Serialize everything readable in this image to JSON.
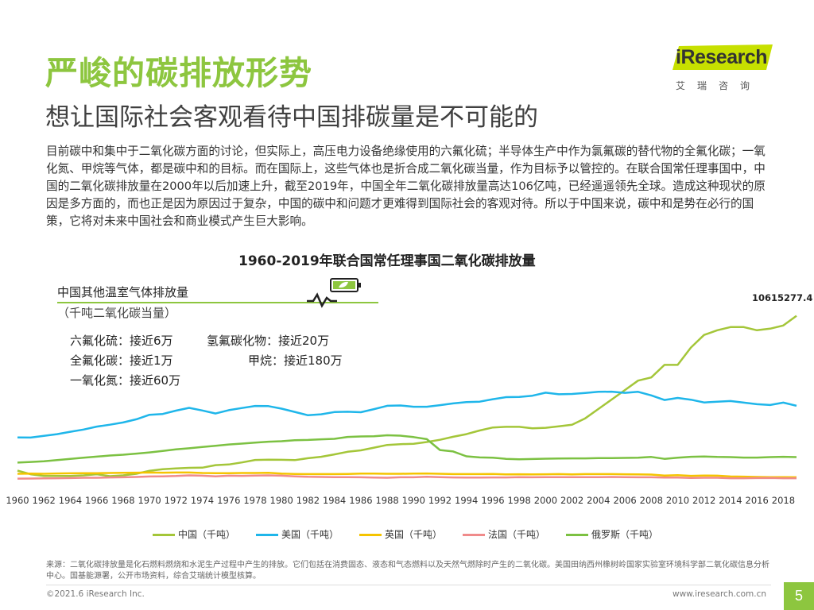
{
  "page": {
    "title": "严峻的碳排放形势",
    "subtitle": "想让国际社会客观看待中国排碳量是不可能的",
    "paragraph": "目前碳中和集中于二氧化碳方面的讨论，但实际上，高压电力设备绝缘使用的六氟化硫；半导体生产中作为氯氟碳的替代物的全氟化碳；一氧化氮、甲烷等气体，都是碳中和的目标。而在国际上，这些气体也是折合成二氧化碳当量，作为目标予以管控的。在联合国常任理事国中，中国的二氧化碳排放量在2000年以后加速上升，截至2019年，中国全年二氧化碳排放量高达106亿吨，已经遥遥领先全球。造成这种现状的原因是多方面的，而也正是因为原因过于复杂，中国的碳中和问题才更难得到国际社会的客观对待。所以于中国来说，碳中和是势在必行的国策，它将对未来中国社会和商业模式产生巨大影响。",
    "source": "来源：二氧化碳排放量是化石燃料燃烧和水泥生产过程中产生的排放。它们包括在消费固态、液态和气态燃料以及天然气燃除时产生的二氧化碳。美国田纳西州橡树岭国家实验室环境科学部二氧化碳信息分析中心。国基能源署，公开市场资料，综合艾瑞统计模型核算。",
    "copyright": "©2021.6 iResearch Inc.",
    "website": "www.iresearch.com.cn",
    "page_number": "5"
  },
  "logo": {
    "name": "iResearch",
    "sub": "艾瑞咨询",
    "accent": "#8dc63f"
  },
  "other_gases": {
    "title": "中国其他温室气体排放量",
    "unit": "（千吨二氧化碳当量）",
    "items": [
      {
        "label": "六氟化硫：接近6万"
      },
      {
        "label": "氢氟碳化物：接近20万"
      },
      {
        "label": "全氟化碳：接近1万"
      },
      {
        "label": "甲烷：接近180万"
      },
      {
        "label": "一氧化氮：接近60万"
      }
    ]
  },
  "chart_data": {
    "type": "line",
    "title": "1960-2019年联合国常任理事国二氧化碳排放量",
    "max_label": "10615277.4",
    "x": [
      1960,
      1961,
      1962,
      1963,
      1964,
      1965,
      1966,
      1967,
      1968,
      1969,
      1970,
      1971,
      1972,
      1973,
      1974,
      1975,
      1976,
      1977,
      1978,
      1979,
      1980,
      1981,
      1982,
      1983,
      1984,
      1985,
      1986,
      1987,
      1988,
      1989,
      1990,
      1991,
      1992,
      1993,
      1994,
      1995,
      1996,
      1997,
      1998,
      1999,
      2000,
      2001,
      2002,
      2003,
      2004,
      2005,
      2006,
      2007,
      2008,
      2009,
      2010,
      2011,
      2012,
      2013,
      2014,
      2015,
      2016,
      2017,
      2018,
      2019
    ],
    "x_tick_labels": [
      "1960",
      "1962",
      "1964",
      "1966",
      "1968",
      "1970",
      "1972",
      "1974",
      "1976",
      "1978",
      "1980",
      "1982",
      "1984",
      "1986",
      "1988",
      "1990",
      "1992",
      "1994",
      "1996",
      "1998",
      "2000",
      "2002",
      "2004",
      "2006",
      "2008",
      "2010",
      "2012",
      "2014",
      "2016",
      "2018"
    ],
    "ylim": [
      0,
      11000000
    ],
    "series": [
      {
        "name": "中国（千吨）",
        "color": "#a4c639",
        "values": [
          780000,
          550000,
          440000,
          440000,
          440000,
          480000,
          550000,
          430000,
          480000,
          580000,
          770000,
          870000,
          920000,
          960000,
          970000,
          1130000,
          1170000,
          1300000,
          1460000,
          1480000,
          1470000,
          1450000,
          1570000,
          1660000,
          1810000,
          1980000,
          2070000,
          2240000,
          2410000,
          2460000,
          2490000,
          2600000,
          2740000,
          2930000,
          3100000,
          3330000,
          3520000,
          3560000,
          3560000,
          3470000,
          3500000,
          3600000,
          3700000,
          4100000,
          4700000,
          5300000,
          5900000,
          6500000,
          6700000,
          7500000,
          7500000,
          8600000,
          9400000,
          9700000,
          9900000,
          9900000,
          9700000,
          9800000,
          10000000,
          10615277
        ]
      },
      {
        "name": "美国（千吨）",
        "color": "#1fb6ea",
        "values": [
          2890000,
          2880000,
          2990000,
          3100000,
          3250000,
          3390000,
          3580000,
          3700000,
          3840000,
          4040000,
          4330000,
          4380000,
          4590000,
          4770000,
          4600000,
          4410000,
          4620000,
          4760000,
          4890000,
          4880000,
          4720000,
          4510000,
          4300000,
          4360000,
          4500000,
          4520000,
          4490000,
          4690000,
          4900000,
          4920000,
          4840000,
          4840000,
          4940000,
          5050000,
          5130000,
          5160000,
          5320000,
          5450000,
          5460000,
          5540000,
          5730000,
          5630000,
          5650000,
          5710000,
          5790000,
          5800000,
          5720000,
          5790000,
          5560000,
          5270000,
          5400000,
          5290000,
          5110000,
          5160000,
          5200000,
          5100000,
          5000000,
          4950000,
          5100000,
          4900000
        ]
      },
      {
        "name": "英国（千吨）",
        "color": "#f5c400",
        "values": [
          580000,
          590000,
          580000,
          600000,
          610000,
          620000,
          620000,
          630000,
          640000,
          650000,
          660000,
          650000,
          660000,
          660000,
          630000,
          620000,
          620000,
          630000,
          630000,
          640000,
          590000,
          570000,
          560000,
          560000,
          560000,
          570000,
          590000,
          590000,
          580000,
          580000,
          590000,
          600000,
          580000,
          560000,
          560000,
          560000,
          570000,
          540000,
          550000,
          540000,
          550000,
          560000,
          540000,
          560000,
          560000,
          560000,
          550000,
          540000,
          530000,
          470000,
          490000,
          450000,
          470000,
          460000,
          410000,
          400000,
          380000,
          370000,
          370000,
          360000
        ]
      },
      {
        "name": "法国（千吨）",
        "color": "#f08b8b",
        "values": [
          270000,
          280000,
          290000,
          300000,
          310000,
          330000,
          330000,
          350000,
          360000,
          380000,
          410000,
          420000,
          440000,
          480000,
          460000,
          420000,
          460000,
          450000,
          470000,
          480000,
          460000,
          420000,
          390000,
          380000,
          370000,
          370000,
          360000,
          340000,
          330000,
          360000,
          360000,
          390000,
          370000,
          350000,
          340000,
          340000,
          350000,
          350000,
          370000,
          360000,
          370000,
          370000,
          370000,
          370000,
          370000,
          380000,
          370000,
          360000,
          360000,
          340000,
          340000,
          320000,
          330000,
          330000,
          300000,
          300000,
          310000,
          320000,
          300000,
          300000
        ]
      },
      {
        "name": "俄罗斯（千吨）",
        "color": "#7cc142",
        "values": [
          1290000,
          1330000,
          1380000,
          1450000,
          1530000,
          1600000,
          1670000,
          1740000,
          1790000,
          1860000,
          1940000,
          2030000,
          2130000,
          2200000,
          2280000,
          2360000,
          2440000,
          2500000,
          2560000,
          2620000,
          2650000,
          2710000,
          2730000,
          2770000,
          2800000,
          2920000,
          2950000,
          2960000,
          3030000,
          3000000,
          2910000,
          2780000,
          2090000,
          2000000,
          1690000,
          1620000,
          1600000,
          1530000,
          1500000,
          1520000,
          1540000,
          1550000,
          1560000,
          1560000,
          1580000,
          1580000,
          1590000,
          1600000,
          1650000,
          1530000,
          1600000,
          1660000,
          1680000,
          1650000,
          1640000,
          1610000,
          1610000,
          1640000,
          1660000,
          1640000
        ]
      }
    ],
    "legend_position": "bottom"
  }
}
